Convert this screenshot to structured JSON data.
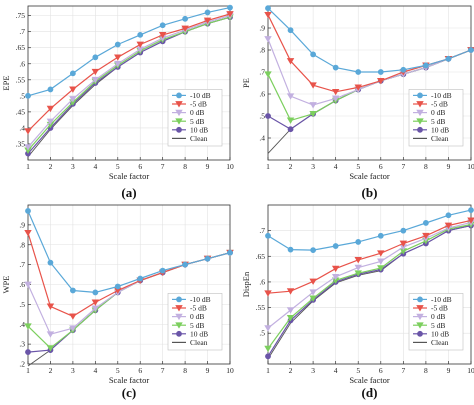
{
  "chart_data": [
    {
      "type": "line",
      "caption": "(a)",
      "xlabel": "Scale factor",
      "ylabel": "EPE",
      "x": [
        1,
        2,
        3,
        4,
        5,
        6,
        7,
        8,
        9,
        10
      ],
      "xlim": [
        1,
        10
      ],
      "ylim": [
        0.3,
        0.78
      ],
      "yticks": [
        0.35,
        0.4,
        0.45,
        0.5,
        0.55,
        0.6,
        0.65,
        0.7,
        0.75
      ],
      "grid": true,
      "legend_position": "bottom-right",
      "series": [
        {
          "name": "-10 dB",
          "color": "#5aa8d8",
          "marker": "circle",
          "values": [
            0.5,
            0.52,
            0.57,
            0.62,
            0.66,
            0.69,
            0.72,
            0.74,
            0.76,
            0.775
          ]
        },
        {
          "name": "-5 dB",
          "color": "#e8534a",
          "marker": "triangle-down",
          "values": [
            0.39,
            0.46,
            0.52,
            0.575,
            0.62,
            0.66,
            0.69,
            0.71,
            0.735,
            0.755
          ]
        },
        {
          "name": "0 dB",
          "color": "#c2b0e0",
          "marker": "triangle-down",
          "values": [
            0.34,
            0.42,
            0.49,
            0.55,
            0.6,
            0.645,
            0.68,
            0.705,
            0.73,
            0.75
          ]
        },
        {
          "name": "5 dB",
          "color": "#7ccf5e",
          "marker": "triangle-down",
          "values": [
            0.33,
            0.41,
            0.48,
            0.545,
            0.595,
            0.64,
            0.675,
            0.7,
            0.725,
            0.745
          ]
        },
        {
          "name": "10 dB",
          "color": "#6a55a8",
          "marker": "circle",
          "values": [
            0.32,
            0.4,
            0.475,
            0.54,
            0.59,
            0.635,
            0.67,
            0.7,
            0.725,
            0.745
          ]
        },
        {
          "name": "Clean",
          "color": "#555555",
          "marker": "none",
          "values": [
            0.31,
            0.395,
            0.47,
            0.535,
            0.59,
            0.635,
            0.67,
            0.7,
            0.725,
            0.745
          ]
        }
      ]
    },
    {
      "type": "line",
      "caption": "(b)",
      "xlabel": "Scale factor",
      "ylabel": "PE",
      "x": [
        1,
        2,
        3,
        4,
        5,
        6,
        7,
        8,
        9,
        10
      ],
      "xlim": [
        1,
        10
      ],
      "ylim": [
        0.3,
        1.0
      ],
      "yticks": [
        0.4,
        0.5,
        0.6,
        0.7,
        0.8,
        0.9
      ],
      "grid": true,
      "legend_position": "bottom-right",
      "series": [
        {
          "name": "-10 dB",
          "color": "#5aa8d8",
          "marker": "circle",
          "values": [
            0.99,
            0.89,
            0.78,
            0.72,
            0.7,
            0.7,
            0.71,
            0.73,
            0.76,
            0.8
          ]
        },
        {
          "name": "-5 dB",
          "color": "#e8534a",
          "marker": "triangle-down",
          "values": [
            0.96,
            0.75,
            0.64,
            0.61,
            0.63,
            0.66,
            0.7,
            0.73,
            0.76,
            0.8
          ]
        },
        {
          "name": "0 dB",
          "color": "#c2b0e0",
          "marker": "triangle-down",
          "values": [
            0.85,
            0.59,
            0.55,
            0.58,
            0.62,
            0.66,
            0.69,
            0.72,
            0.76,
            0.8
          ]
        },
        {
          "name": "5 dB",
          "color": "#7ccf5e",
          "marker": "triangle-down",
          "values": [
            0.69,
            0.48,
            0.51,
            0.57,
            0.62,
            0.66,
            0.69,
            0.72,
            0.76,
            0.8
          ]
        },
        {
          "name": "10 dB",
          "color": "#6a55a8",
          "marker": "circle",
          "values": [
            0.5,
            0.44,
            0.51,
            0.57,
            0.62,
            0.66,
            0.69,
            0.72,
            0.76,
            0.8
          ]
        },
        {
          "name": "Clean",
          "color": "#555555",
          "marker": "none",
          "values": [
            0.33,
            0.44,
            0.51,
            0.57,
            0.62,
            0.66,
            0.69,
            0.72,
            0.76,
            0.8
          ]
        }
      ]
    },
    {
      "type": "line",
      "caption": "(c)",
      "xlabel": "Scale factor",
      "ylabel": "WPE",
      "x": [
        1,
        2,
        3,
        4,
        5,
        6,
        7,
        8,
        9,
        10
      ],
      "xlim": [
        1,
        10
      ],
      "ylim": [
        0.2,
        1.0
      ],
      "yticks": [
        0.2,
        0.3,
        0.4,
        0.5,
        0.6,
        0.7,
        0.8,
        0.9
      ],
      "grid": true,
      "legend_position": "bottom-right",
      "series": [
        {
          "name": "-10 dB",
          "color": "#5aa8d8",
          "marker": "circle",
          "values": [
            0.97,
            0.71,
            0.57,
            0.56,
            0.59,
            0.63,
            0.67,
            0.7,
            0.73,
            0.76
          ]
        },
        {
          "name": "-5 dB",
          "color": "#e8534a",
          "marker": "triangle-down",
          "values": [
            0.86,
            0.49,
            0.44,
            0.51,
            0.57,
            0.62,
            0.66,
            0.7,
            0.73,
            0.76
          ]
        },
        {
          "name": "0 dB",
          "color": "#c2b0e0",
          "marker": "triangle-down",
          "values": [
            0.6,
            0.35,
            0.38,
            0.48,
            0.56,
            0.62,
            0.66,
            0.7,
            0.73,
            0.76
          ]
        },
        {
          "name": "5 dB",
          "color": "#7ccf5e",
          "marker": "triangle-down",
          "values": [
            0.39,
            0.28,
            0.37,
            0.47,
            0.56,
            0.62,
            0.66,
            0.7,
            0.73,
            0.76
          ]
        },
        {
          "name": "10 dB",
          "color": "#6a55a8",
          "marker": "circle",
          "values": [
            0.26,
            0.27,
            0.37,
            0.47,
            0.56,
            0.62,
            0.66,
            0.7,
            0.73,
            0.76
          ]
        },
        {
          "name": "Clean",
          "color": "#555555",
          "marker": "none",
          "values": [
            0.19,
            0.27,
            0.37,
            0.47,
            0.56,
            0.62,
            0.66,
            0.7,
            0.73,
            0.76
          ]
        }
      ]
    },
    {
      "type": "line",
      "caption": "(d)",
      "xlabel": "Scale factor",
      "ylabel": "DispEn",
      "x": [
        1,
        2,
        3,
        4,
        5,
        6,
        7,
        8,
        9,
        10
      ],
      "xlim": [
        1,
        10
      ],
      "ylim": [
        0.44,
        0.75
      ],
      "yticks": [
        0.5,
        0.55,
        0.6,
        0.65,
        0.7
      ],
      "grid": true,
      "legend_position": "bottom-right",
      "series": [
        {
          "name": "-10 dB",
          "color": "#5aa8d8",
          "marker": "circle",
          "values": [
            0.69,
            0.663,
            0.662,
            0.67,
            0.678,
            0.69,
            0.7,
            0.715,
            0.73,
            0.74
          ]
        },
        {
          "name": "-5 dB",
          "color": "#e8534a",
          "marker": "triangle-down",
          "values": [
            0.578,
            0.582,
            0.601,
            0.626,
            0.643,
            0.656,
            0.675,
            0.69,
            0.71,
            0.72
          ]
        },
        {
          "name": "0 dB",
          "color": "#c2b0e0",
          "marker": "triangle-down",
          "values": [
            0.51,
            0.545,
            0.58,
            0.61,
            0.628,
            0.64,
            0.668,
            0.685,
            0.705,
            0.716
          ]
        },
        {
          "name": "5 dB",
          "color": "#7ccf5e",
          "marker": "triangle-down",
          "values": [
            0.47,
            0.53,
            0.568,
            0.603,
            0.617,
            0.627,
            0.66,
            0.68,
            0.703,
            0.712
          ]
        },
        {
          "name": "10 dB",
          "color": "#6a55a8",
          "marker": "circle",
          "values": [
            0.455,
            0.525,
            0.565,
            0.6,
            0.615,
            0.624,
            0.655,
            0.675,
            0.7,
            0.71
          ]
        },
        {
          "name": "Clean",
          "color": "#555555",
          "marker": "none",
          "values": [
            0.45,
            0.52,
            0.563,
            0.598,
            0.613,
            0.622,
            0.655,
            0.675,
            0.7,
            0.71
          ]
        }
      ]
    }
  ]
}
